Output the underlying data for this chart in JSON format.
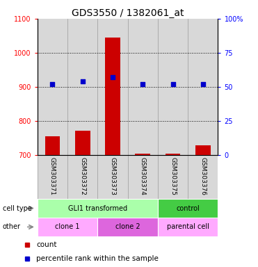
{
  "title": "GDS3550 / 1382061_at",
  "samples": [
    "GSM303371",
    "GSM303372",
    "GSM303373",
    "GSM303374",
    "GSM303375",
    "GSM303376"
  ],
  "counts": [
    755,
    770,
    1045,
    703,
    703,
    728
  ],
  "percentiles": [
    52,
    54,
    57,
    52,
    52,
    52
  ],
  "ylim_left": [
    700,
    1100
  ],
  "ylim_right": [
    0,
    100
  ],
  "yticks_left": [
    700,
    800,
    900,
    1000,
    1100
  ],
  "yticks_right": [
    0,
    25,
    50,
    75,
    100
  ],
  "bar_color": "#cc0000",
  "dot_color": "#0000cc",
  "bg_color": "#ffffff",
  "cell_type_groups": [
    {
      "label": "GLI1 transformed",
      "start": 0,
      "end": 4,
      "color": "#aaffaa"
    },
    {
      "label": "control",
      "start": 4,
      "end": 6,
      "color": "#44cc44"
    }
  ],
  "other_groups": [
    {
      "label": "clone 1",
      "start": 0,
      "end": 2,
      "color": "#ffaaff"
    },
    {
      "label": "clone 2",
      "start": 2,
      "end": 4,
      "color": "#dd66dd"
    },
    {
      "label": "parental cell",
      "start": 4,
      "end": 6,
      "color": "#ffaaff"
    }
  ],
  "title_fontsize": 10,
  "tick_fontsize": 7,
  "bar_width": 0.5,
  "col_bg_color": "#d8d8d8",
  "grid_dotted_color": "#333333",
  "legend_fontsize": 7.5,
  "sample_fontsize": 6.5,
  "annot_fontsize": 7,
  "arrow_color": "#888888"
}
